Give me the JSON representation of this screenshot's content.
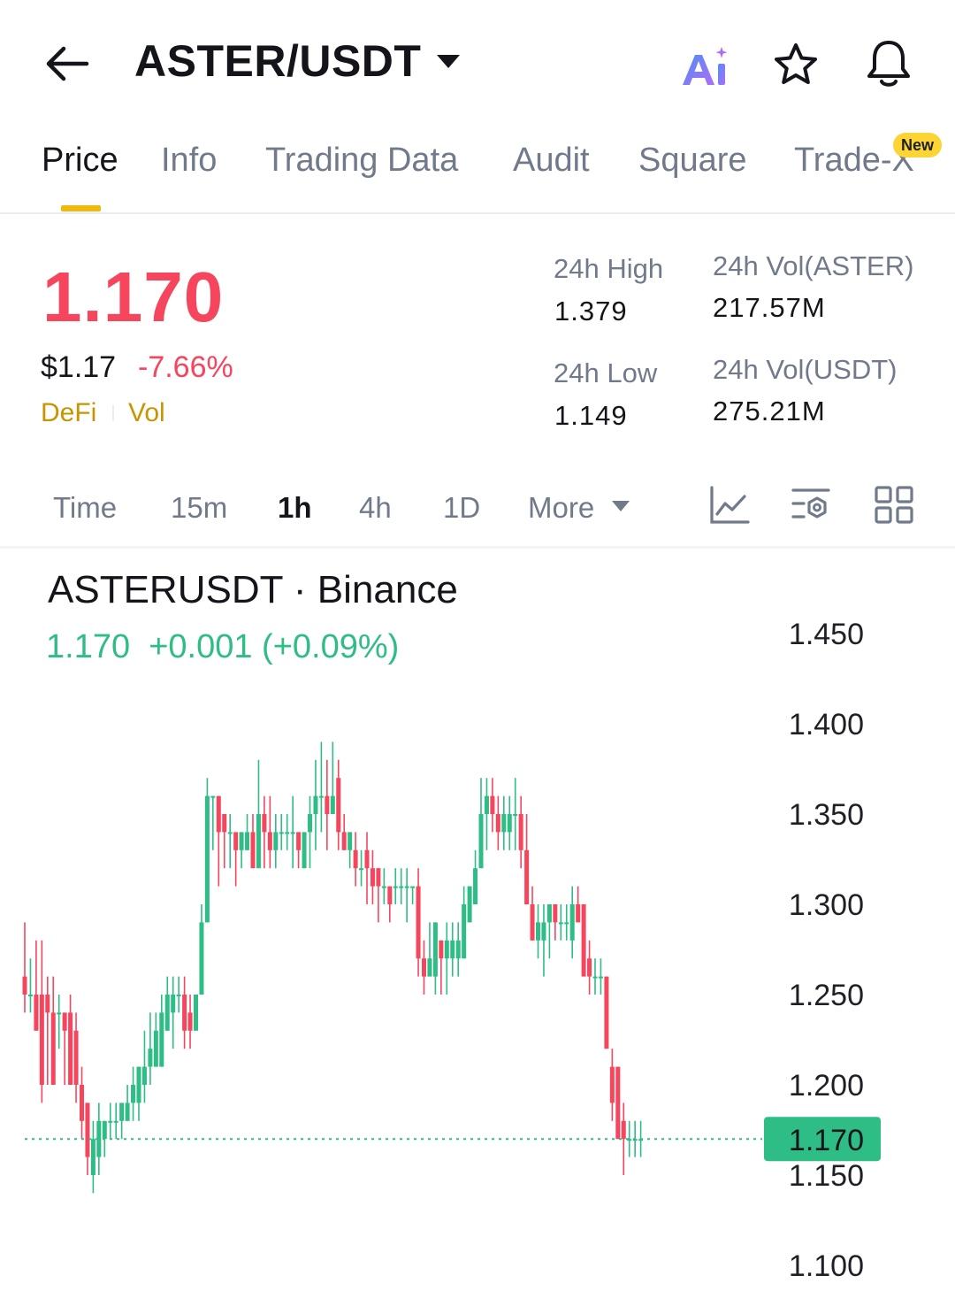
{
  "header": {
    "pair": "ASTER/USDT",
    "icons": [
      "back-arrow-icon",
      "dropdown-caret-icon",
      "ai-icon",
      "star-icon",
      "bell-icon"
    ]
  },
  "tabs": [
    {
      "label": "Price",
      "active": true
    },
    {
      "label": "Info"
    },
    {
      "label": "Trading Data"
    },
    {
      "label": "Audit"
    },
    {
      "label": "Square"
    },
    {
      "label": "Trade-X",
      "badge": "New"
    }
  ],
  "price": {
    "last": "1.170",
    "usd": "$1.17",
    "change_pct": "-7.66%",
    "tags": [
      "DeFi",
      "Vol"
    ]
  },
  "stats": {
    "high_label": "24h High",
    "high_value": "1.379",
    "low_label": "24h Low",
    "low_value": "1.149",
    "vol_base_label": "24h Vol(ASTER)",
    "vol_base_value": "217.57M",
    "vol_quote_label": "24h Vol(USDT)",
    "vol_quote_value": "275.21M"
  },
  "intervals": {
    "items": [
      "Time",
      "15m",
      "1h",
      "4h",
      "1D",
      "More"
    ],
    "active": "1h",
    "tool_icons": [
      "indicator-icon",
      "chart-settings-icon",
      "layout-grid-icon"
    ]
  },
  "chart": {
    "title": "ASTERUSDT · Binance",
    "change": "1.170  +0.001 (+0.09%)"
  },
  "colors": {
    "up": "#2ebd85",
    "down": "#f6465d",
    "accent": "#f0b90b",
    "muted": "#707a8a"
  },
  "chart_data": {
    "type": "candlestick",
    "interval": "1h",
    "y_ticks": [
      "1.450",
      "1.400",
      "1.350",
      "1.300",
      "1.250",
      "1.200",
      "1.150",
      "1.100"
    ],
    "ylim": [
      1.1,
      1.45
    ],
    "last_price": 1.17,
    "last_price_label": "1.170",
    "candles": [
      [
        1.26,
        1.25,
        1.29,
        1.24
      ],
      [
        1.25,
        1.25,
        1.27,
        1.24
      ],
      [
        1.25,
        1.23,
        1.28,
        1.23
      ],
      [
        1.25,
        1.2,
        1.28,
        1.19
      ],
      [
        1.25,
        1.24,
        1.26,
        1.2
      ],
      [
        1.24,
        1.2,
        1.26,
        1.2
      ],
      [
        1.24,
        1.24,
        1.25,
        1.22
      ],
      [
        1.24,
        1.23,
        1.24,
        1.2
      ],
      [
        1.24,
        1.2,
        1.25,
        1.2
      ],
      [
        1.23,
        1.2,
        1.24,
        1.19
      ],
      [
        1.2,
        1.18,
        1.21,
        1.17
      ],
      [
        1.19,
        1.16,
        1.19,
        1.15
      ],
      [
        1.15,
        1.17,
        1.18,
        1.14
      ],
      [
        1.16,
        1.18,
        1.19,
        1.15
      ],
      [
        1.17,
        1.18,
        1.18,
        1.16
      ],
      [
        1.18,
        1.18,
        1.19,
        1.17
      ],
      [
        1.18,
        1.18,
        1.19,
        1.17
      ],
      [
        1.18,
        1.19,
        1.19,
        1.17
      ],
      [
        1.18,
        1.19,
        1.2,
        1.18
      ],
      [
        1.19,
        1.2,
        1.21,
        1.18
      ],
      [
        1.19,
        1.21,
        1.21,
        1.18
      ],
      [
        1.2,
        1.21,
        1.23,
        1.19
      ],
      [
        1.21,
        1.22,
        1.24,
        1.2
      ],
      [
        1.21,
        1.23,
        1.24,
        1.21
      ],
      [
        1.21,
        1.24,
        1.25,
        1.21
      ],
      [
        1.23,
        1.25,
        1.26,
        1.23
      ],
      [
        1.24,
        1.25,
        1.26,
        1.22
      ],
      [
        1.25,
        1.25,
        1.26,
        1.24
      ],
      [
        1.25,
        1.23,
        1.26,
        1.22
      ],
      [
        1.24,
        1.23,
        1.25,
        1.22
      ],
      [
        1.23,
        1.25,
        1.25,
        1.23
      ],
      [
        1.25,
        1.29,
        1.3,
        1.25
      ],
      [
        1.29,
        1.36,
        1.37,
        1.29
      ],
      [
        1.36,
        1.36,
        1.36,
        1.33
      ],
      [
        1.36,
        1.34,
        1.36,
        1.31
      ],
      [
        1.35,
        1.34,
        1.35,
        1.32
      ],
      [
        1.34,
        1.34,
        1.35,
        1.32
      ],
      [
        1.34,
        1.33,
        1.34,
        1.31
      ],
      [
        1.33,
        1.34,
        1.34,
        1.32
      ],
      [
        1.33,
        1.34,
        1.35,
        1.33
      ],
      [
        1.34,
        1.32,
        1.35,
        1.33
      ],
      [
        1.32,
        1.35,
        1.38,
        1.32
      ],
      [
        1.35,
        1.34,
        1.36,
        1.32
      ],
      [
        1.34,
        1.33,
        1.36,
        1.32
      ],
      [
        1.33,
        1.34,
        1.35,
        1.32
      ],
      [
        1.34,
        1.34,
        1.35,
        1.33
      ],
      [
        1.34,
        1.34,
        1.35,
        1.33
      ],
      [
        1.34,
        1.34,
        1.36,
        1.32
      ],
      [
        1.34,
        1.33,
        1.34,
        1.32
      ],
      [
        1.32,
        1.34,
        1.34,
        1.32
      ],
      [
        1.34,
        1.35,
        1.36,
        1.32
      ],
      [
        1.35,
        1.36,
        1.38,
        1.33
      ],
      [
        1.36,
        1.36,
        1.39,
        1.34
      ],
      [
        1.36,
        1.35,
        1.38,
        1.33
      ],
      [
        1.35,
        1.36,
        1.39,
        1.35
      ],
      [
        1.37,
        1.34,
        1.38,
        1.33
      ],
      [
        1.34,
        1.33,
        1.35,
        1.33
      ],
      [
        1.33,
        1.34,
        1.34,
        1.32
      ],
      [
        1.33,
        1.32,
        1.34,
        1.31
      ],
      [
        1.32,
        1.32,
        1.33,
        1.31
      ],
      [
        1.33,
        1.32,
        1.34,
        1.3
      ],
      [
        1.32,
        1.31,
        1.33,
        1.3
      ],
      [
        1.32,
        1.31,
        1.32,
        1.29
      ],
      [
        1.31,
        1.31,
        1.32,
        1.3
      ],
      [
        1.31,
        1.3,
        1.31,
        1.29
      ],
      [
        1.31,
        1.31,
        1.32,
        1.3
      ],
      [
        1.31,
        1.31,
        1.32,
        1.3
      ],
      [
        1.31,
        1.31,
        1.32,
        1.29
      ],
      [
        1.31,
        1.31,
        1.31,
        1.3
      ],
      [
        1.31,
        1.27,
        1.32,
        1.26
      ],
      [
        1.27,
        1.26,
        1.28,
        1.25
      ],
      [
        1.26,
        1.27,
        1.29,
        1.26
      ],
      [
        1.26,
        1.29,
        1.29,
        1.25
      ],
      [
        1.28,
        1.27,
        1.28,
        1.25
      ],
      [
        1.27,
        1.28,
        1.29,
        1.25
      ],
      [
        1.27,
        1.28,
        1.29,
        1.26
      ],
      [
        1.27,
        1.28,
        1.29,
        1.26
      ],
      [
        1.27,
        1.3,
        1.31,
        1.27
      ],
      [
        1.29,
        1.31,
        1.31,
        1.29
      ],
      [
        1.3,
        1.32,
        1.33,
        1.3
      ],
      [
        1.32,
        1.35,
        1.37,
        1.32
      ],
      [
        1.35,
        1.36,
        1.37,
        1.33
      ],
      [
        1.36,
        1.35,
        1.37,
        1.34
      ],
      [
        1.35,
        1.34,
        1.36,
        1.33
      ],
      [
        1.34,
        1.35,
        1.36,
        1.33
      ],
      [
        1.34,
        1.35,
        1.36,
        1.33
      ],
      [
        1.35,
        1.35,
        1.37,
        1.33
      ],
      [
        1.35,
        1.33,
        1.36,
        1.32
      ],
      [
        1.33,
        1.3,
        1.35,
        1.3
      ],
      [
        1.3,
        1.28,
        1.31,
        1.28
      ],
      [
        1.28,
        1.29,
        1.3,
        1.27
      ],
      [
        1.28,
        1.29,
        1.3,
        1.26
      ],
      [
        1.29,
        1.3,
        1.3,
        1.27
      ],
      [
        1.3,
        1.29,
        1.3,
        1.28
      ],
      [
        1.29,
        1.29,
        1.3,
        1.28
      ],
      [
        1.29,
        1.29,
        1.3,
        1.28
      ],
      [
        1.28,
        1.3,
        1.31,
        1.27
      ],
      [
        1.3,
        1.29,
        1.31,
        1.29
      ],
      [
        1.3,
        1.26,
        1.3,
        1.26
      ],
      [
        1.27,
        1.26,
        1.28,
        1.25
      ],
      [
        1.26,
        1.26,
        1.27,
        1.25
      ],
      [
        1.26,
        1.26,
        1.27,
        1.25
      ],
      [
        1.26,
        1.22,
        1.26,
        1.22
      ],
      [
        1.21,
        1.19,
        1.22,
        1.18
      ],
      [
        1.21,
        1.17,
        1.21,
        1.17
      ],
      [
        1.18,
        1.17,
        1.19,
        1.15
      ],
      [
        1.17,
        1.17,
        1.18,
        1.16
      ],
      [
        1.17,
        1.17,
        1.18,
        1.16
      ],
      [
        1.17,
        1.17,
        1.18,
        1.16
      ]
    ]
  }
}
